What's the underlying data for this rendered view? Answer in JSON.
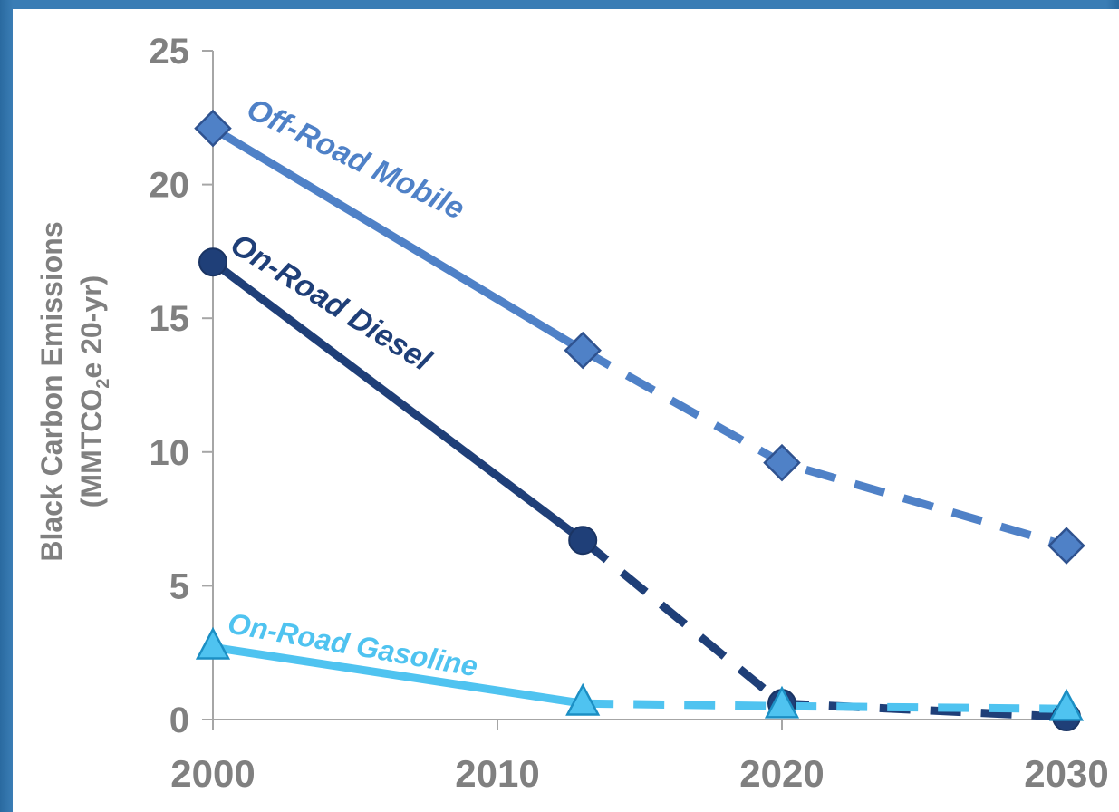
{
  "chart_data": {
    "type": "line",
    "title": "",
    "ylabel_line1": "Black Carbon Emissions",
    "ylabel_line2_prefix": "(MMTCO",
    "ylabel_line2_sub": "2",
    "ylabel_line2_suffix": "e 20-yr)",
    "ylim": [
      0,
      25
    ],
    "yticks": [
      0,
      5,
      10,
      15,
      20,
      25
    ],
    "xlim": [
      2000,
      2030
    ],
    "xticks": [
      2000,
      2010,
      2020,
      2030
    ],
    "grid": false,
    "legend": "inline labels",
    "series": [
      {
        "name": "Off-Road Mobile",
        "color": "#4f81c7",
        "marker": "diamond",
        "x": [
          2000,
          2013,
          2020,
          2030
        ],
        "y": [
          22.1,
          13.8,
          9.6,
          6.5
        ],
        "solid_until_index": 1
      },
      {
        "name": "On-Road Diesel",
        "color": "#1f3f78",
        "marker": "circle",
        "x": [
          2000,
          2013,
          2020,
          2030
        ],
        "y": [
          17.1,
          6.7,
          0.6,
          0.1
        ],
        "solid_until_index": 1
      },
      {
        "name": "On-Road Gasoline",
        "color": "#4fc3f0",
        "marker": "triangle",
        "x": [
          2000,
          2013,
          2020,
          2030
        ],
        "y": [
          2.7,
          0.6,
          0.5,
          0.4
        ],
        "solid_until_index": 1
      }
    ]
  }
}
